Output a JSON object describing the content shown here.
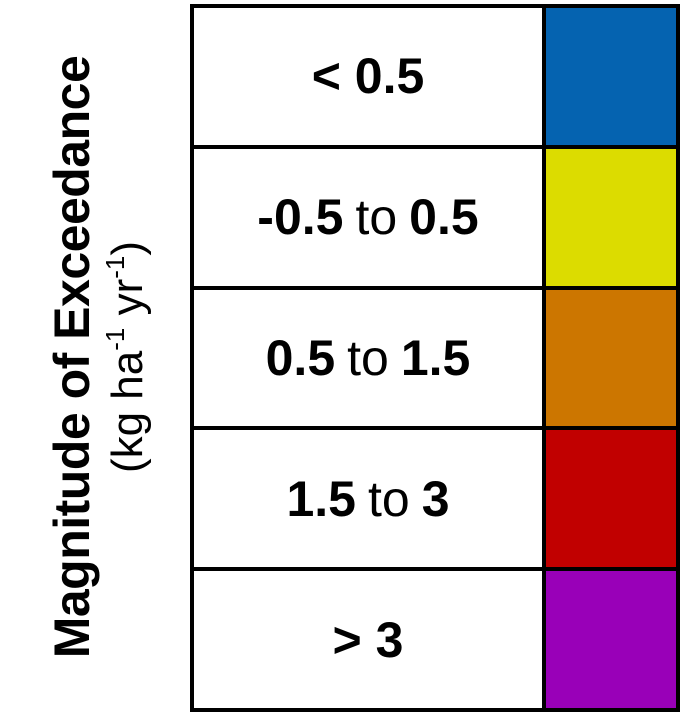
{
  "title": {
    "line1": "Magnitude of Exceedance",
    "unit_kg_ha": "(kg ha",
    "unit_exp1": "-1",
    "unit_yr": " yr",
    "unit_exp2": "-1",
    "unit_close": ")"
  },
  "legend": [
    {
      "from": "< 0.5",
      "sep": "",
      "to": "",
      "color": "#0563b0"
    },
    {
      "from": "-0.5",
      "sep": "to",
      "to": "0.5",
      "color": "#dcdc00"
    },
    {
      "from": "0.5",
      "sep": "to",
      "to": "1.5",
      "color": "#cc7600"
    },
    {
      "from": "1.5",
      "sep": "to",
      "to": "3",
      "color": "#c10000"
    },
    {
      "from": "> 3",
      "sep": "",
      "to": "",
      "color": "#9900b8"
    }
  ]
}
